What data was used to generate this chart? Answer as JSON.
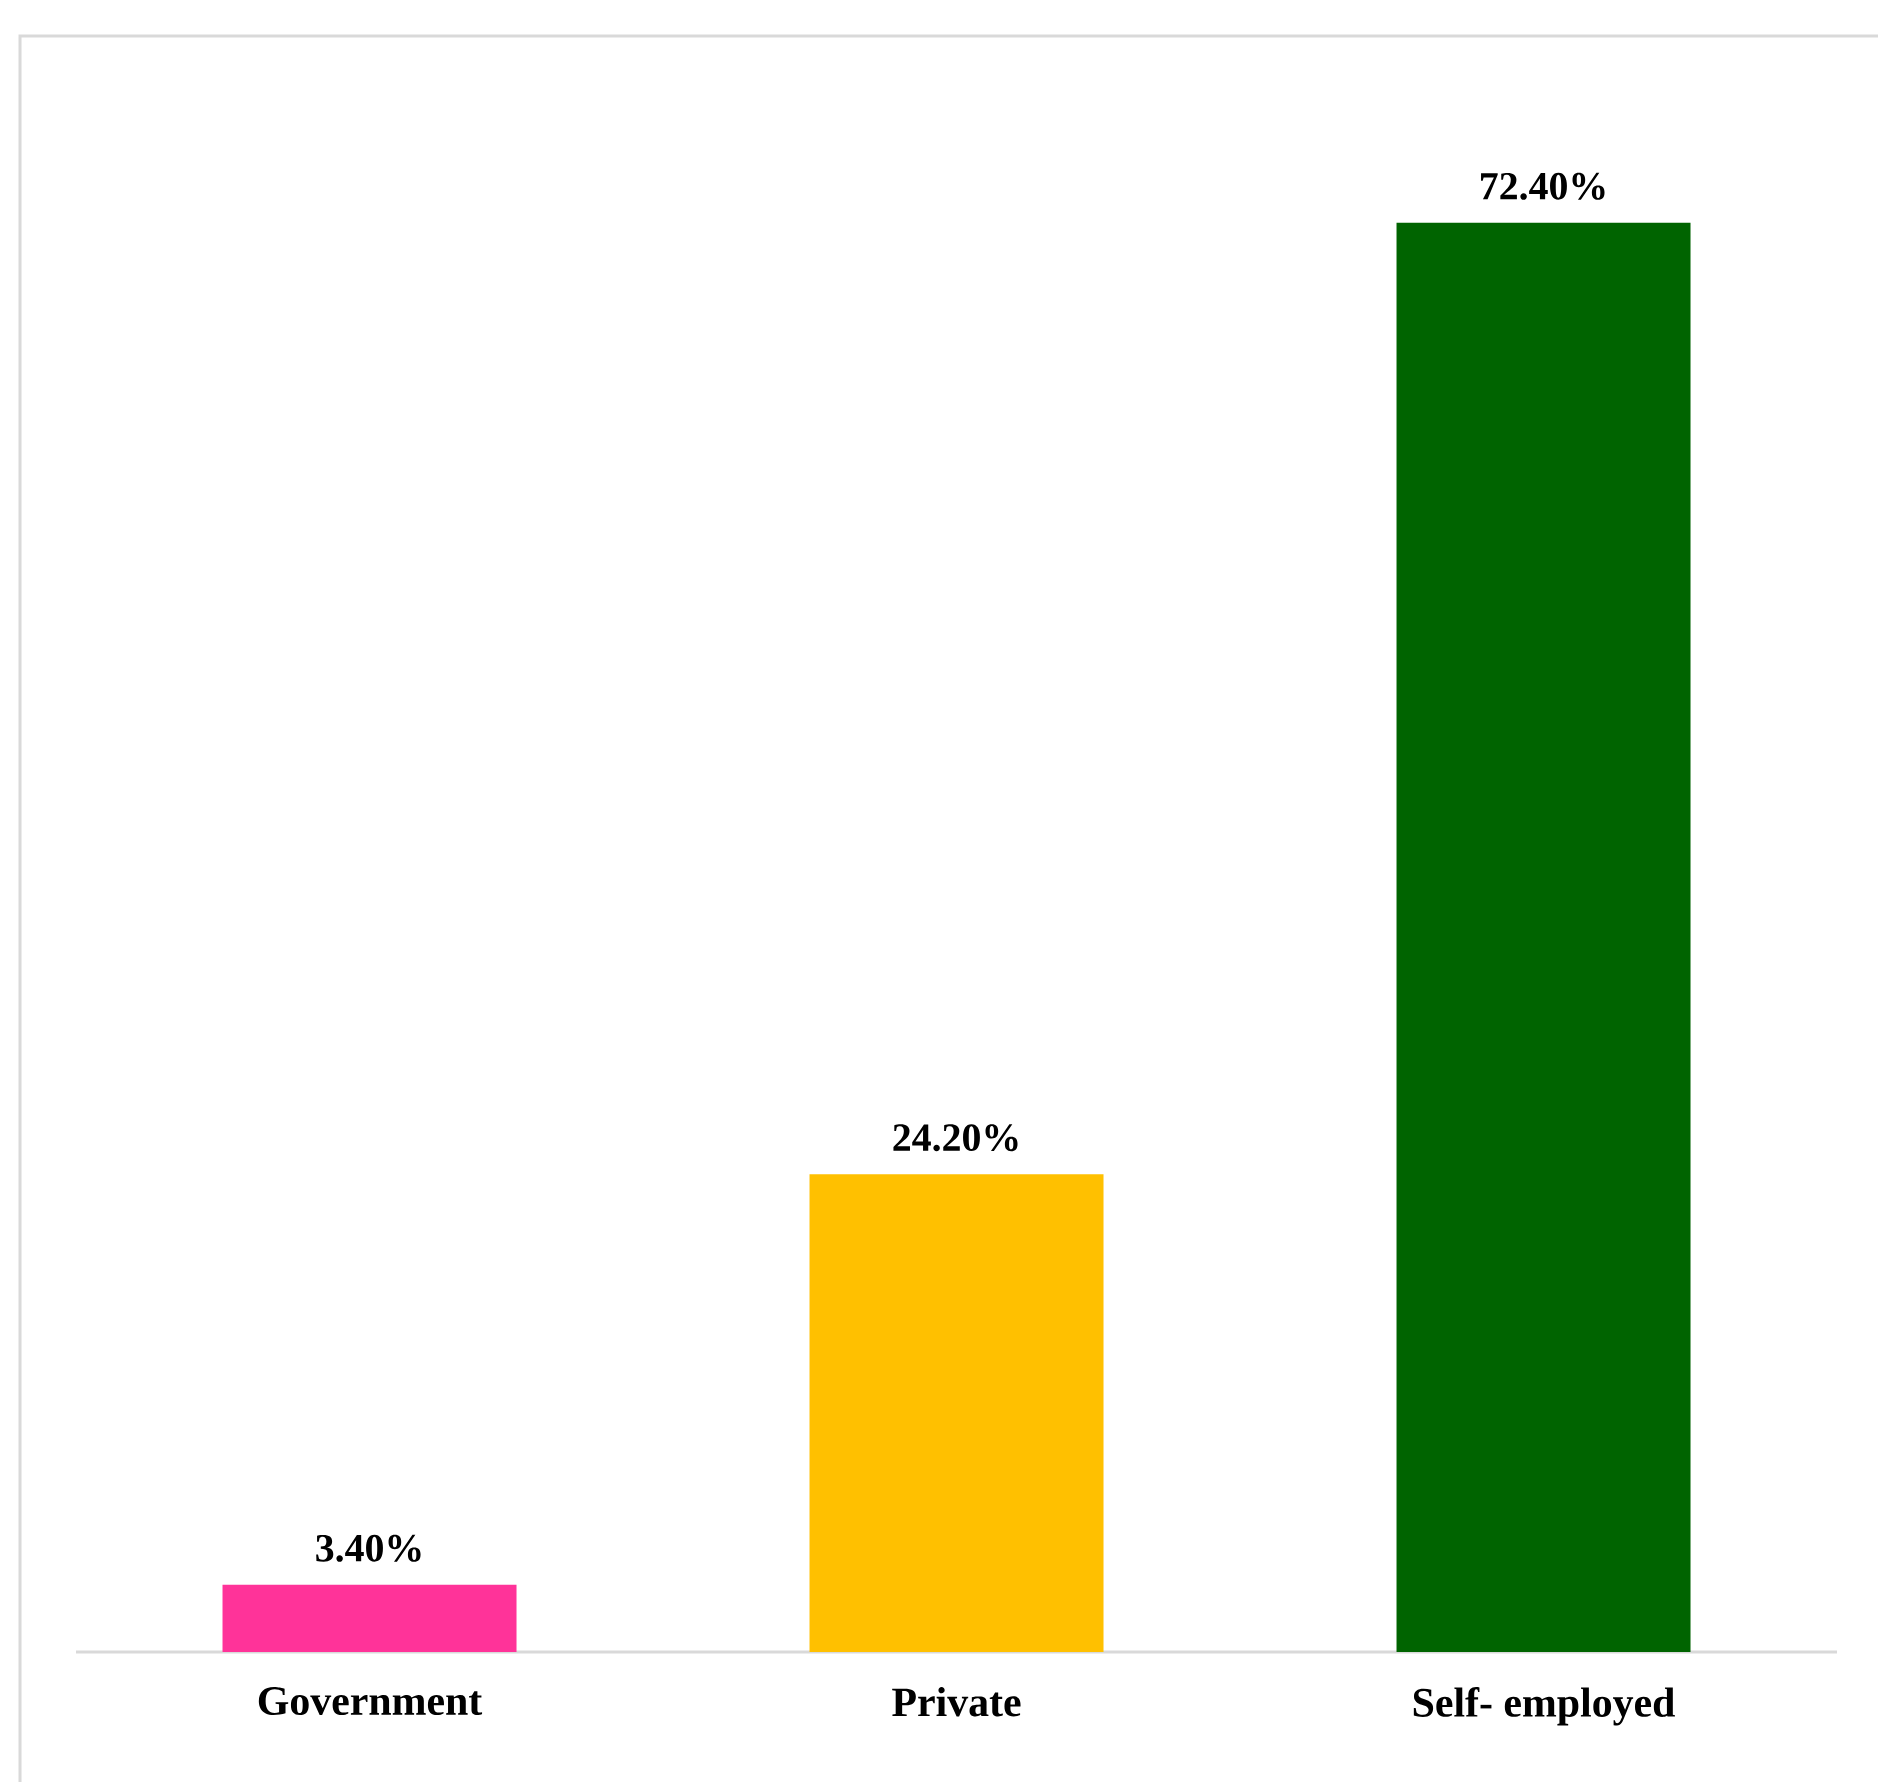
{
  "chart_data": {
    "type": "bar",
    "categories": [
      "Government",
      "Private",
      "Self- employed"
    ],
    "values": [
      3.4,
      24.2,
      72.4
    ],
    "colors": [
      "#ff3399",
      "#ffc000",
      "#006400"
    ],
    "value_labels": [
      "3.40%",
      "24.20%",
      "72.40%"
    ],
    "tick_labels": "x"
  }
}
